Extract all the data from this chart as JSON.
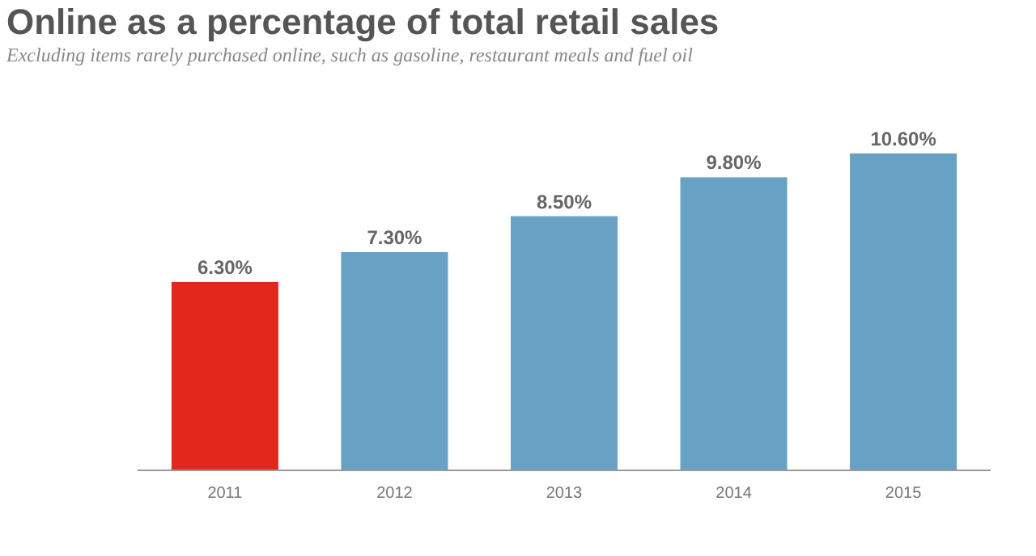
{
  "chart_data": {
    "type": "bar",
    "title": "Online as a percentage of total retail sales",
    "subtitle": "Excluding items rarely purchased online, such as gasoline, restaurant meals and fuel oil",
    "categories": [
      "2011",
      "2012",
      "2013",
      "2014",
      "2015"
    ],
    "values": [
      6.3,
      7.3,
      8.5,
      9.8,
      10.6
    ],
    "colors": [
      "#e2271d",
      "#67a2c4",
      "#67a2c4",
      "#67a2c4",
      "#67a2c4"
    ],
    "value_labels": [
      "6.30%",
      "7.30%",
      "8.50%",
      "9.80%",
      "10.60%"
    ]
  }
}
